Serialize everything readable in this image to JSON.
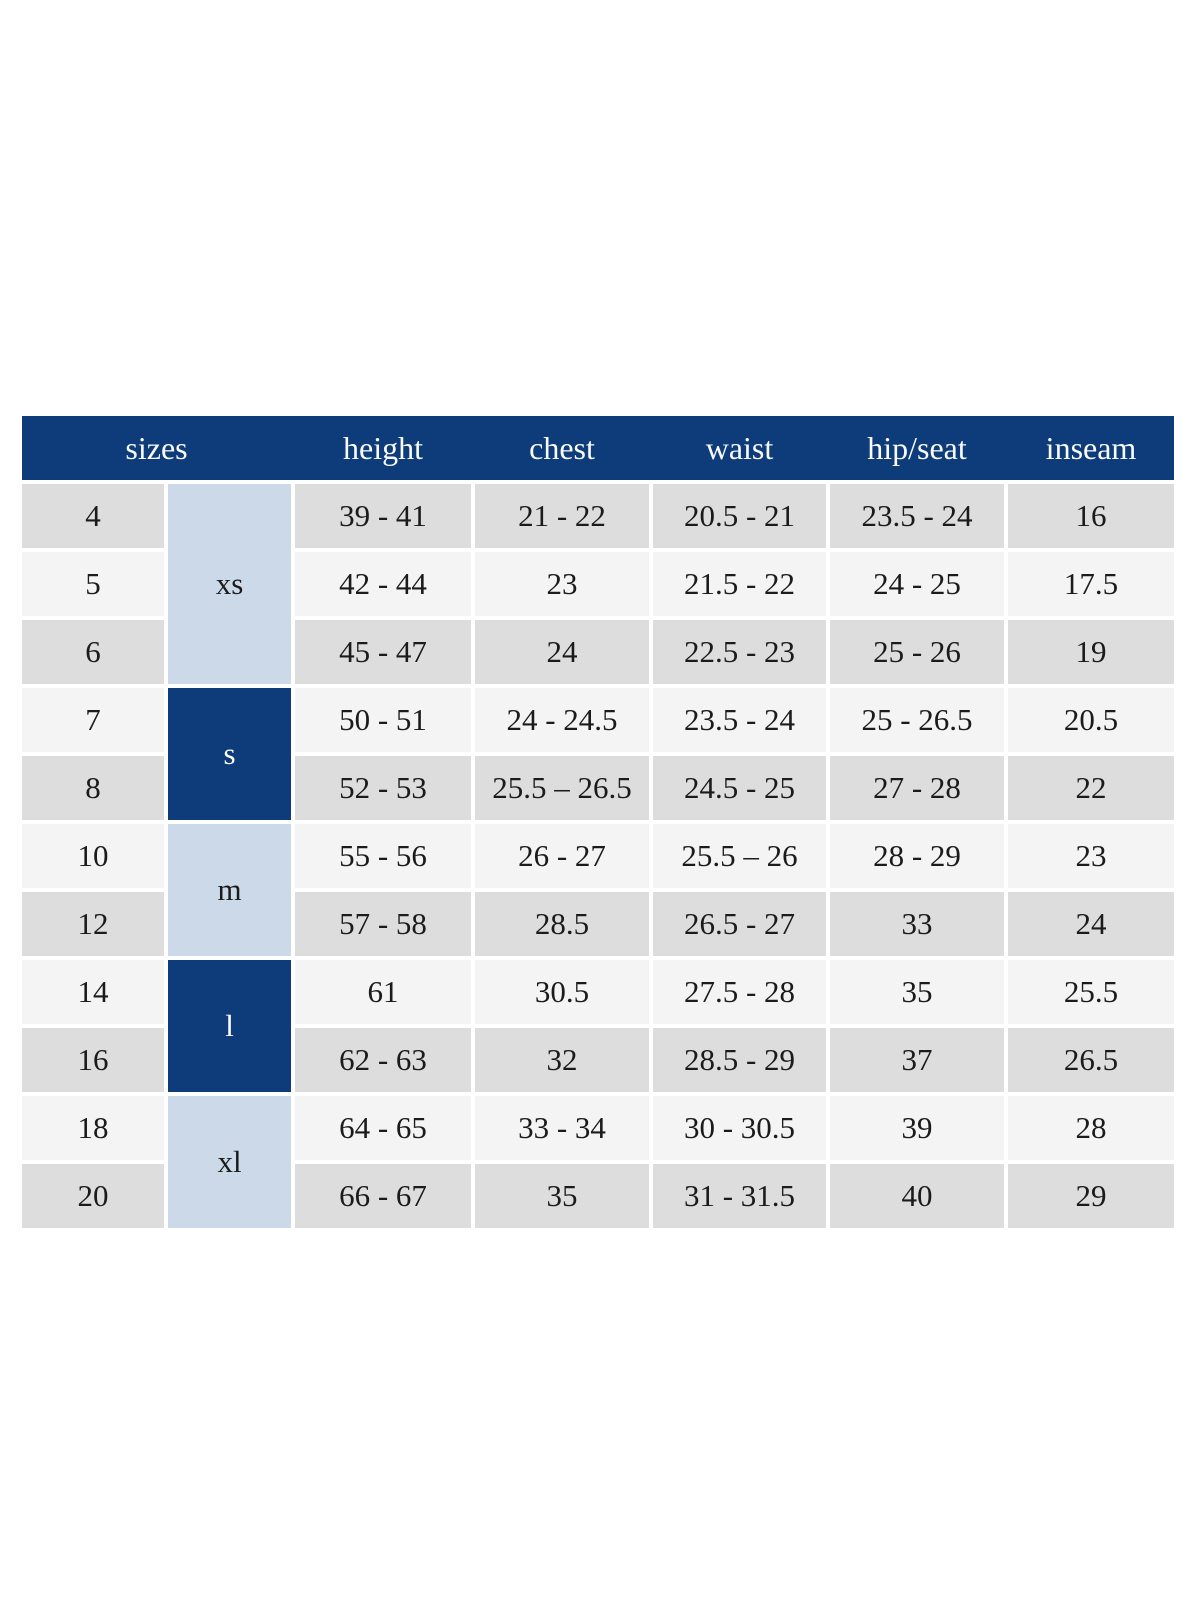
{
  "colors": {
    "header_bg": "#0e3c7a",
    "header_text": "#ffffff",
    "group_dark_bg": "#0e3c7a",
    "group_dark_text": "#ffffff",
    "group_light_bg": "#ccd9e8",
    "row_gray_bg": "#dddddd",
    "row_light_bg": "#f4f4f4",
    "cell_text": "#1b1b1b"
  },
  "chart_data": {
    "type": "table",
    "header": {
      "sizes": "sizes",
      "height": "height",
      "chest": "chest",
      "waist": "waist",
      "hip_seat": "hip/seat",
      "inseam": "inseam"
    },
    "groups": [
      {
        "label": "xs",
        "span": 3,
        "variant": "light"
      },
      {
        "label": "s",
        "span": 2,
        "variant": "dark"
      },
      {
        "label": "m",
        "span": 2,
        "variant": "light"
      },
      {
        "label": "l",
        "span": 2,
        "variant": "dark"
      },
      {
        "label": "xl",
        "span": 2,
        "variant": "light"
      }
    ],
    "rows": [
      {
        "size": "4",
        "group": "xs",
        "height": "39 - 41",
        "chest": "21 - 22",
        "waist": "20.5 - 21",
        "hip_seat": "23.5 - 24",
        "inseam": "16"
      },
      {
        "size": "5",
        "group": "xs",
        "height": "42 - 44",
        "chest": "23",
        "waist": "21.5 - 22",
        "hip_seat": "24 - 25",
        "inseam": "17.5"
      },
      {
        "size": "6",
        "group": "xs",
        "height": "45 - 47",
        "chest": "24",
        "waist": "22.5 - 23",
        "hip_seat": "25 - 26",
        "inseam": "19"
      },
      {
        "size": "7",
        "group": "s",
        "height": "50 - 51",
        "chest": "24 - 24.5",
        "waist": "23.5 - 24",
        "hip_seat": "25 - 26.5",
        "inseam": "20.5"
      },
      {
        "size": "8",
        "group": "s",
        "height": "52 - 53",
        "chest": "25.5 – 26.5",
        "waist": "24.5 - 25",
        "hip_seat": "27 - 28",
        "inseam": "22"
      },
      {
        "size": "10",
        "group": "m",
        "height": "55 - 56",
        "chest": "26 - 27",
        "waist": "25.5 – 26",
        "hip_seat": "28 - 29",
        "inseam": "23"
      },
      {
        "size": "12",
        "group": "m",
        "height": "57 - 58",
        "chest": "28.5",
        "waist": "26.5 - 27",
        "hip_seat": "33",
        "inseam": "24"
      },
      {
        "size": "14",
        "group": "l",
        "height": "61",
        "chest": "30.5",
        "waist": "27.5 - 28",
        "hip_seat": "35",
        "inseam": "25.5"
      },
      {
        "size": "16",
        "group": "l",
        "height": "62 - 63",
        "chest": "32",
        "waist": "28.5 - 29",
        "hip_seat": "37",
        "inseam": "26.5"
      },
      {
        "size": "18",
        "group": "xl",
        "height": "64 - 65",
        "chest": "33 - 34",
        "waist": "30 - 30.5",
        "hip_seat": "39",
        "inseam": "28"
      },
      {
        "size": "20",
        "group": "xl",
        "height": "66 - 67",
        "chest": "35",
        "waist": "31 - 31.5",
        "hip_seat": "40",
        "inseam": "29"
      }
    ]
  }
}
